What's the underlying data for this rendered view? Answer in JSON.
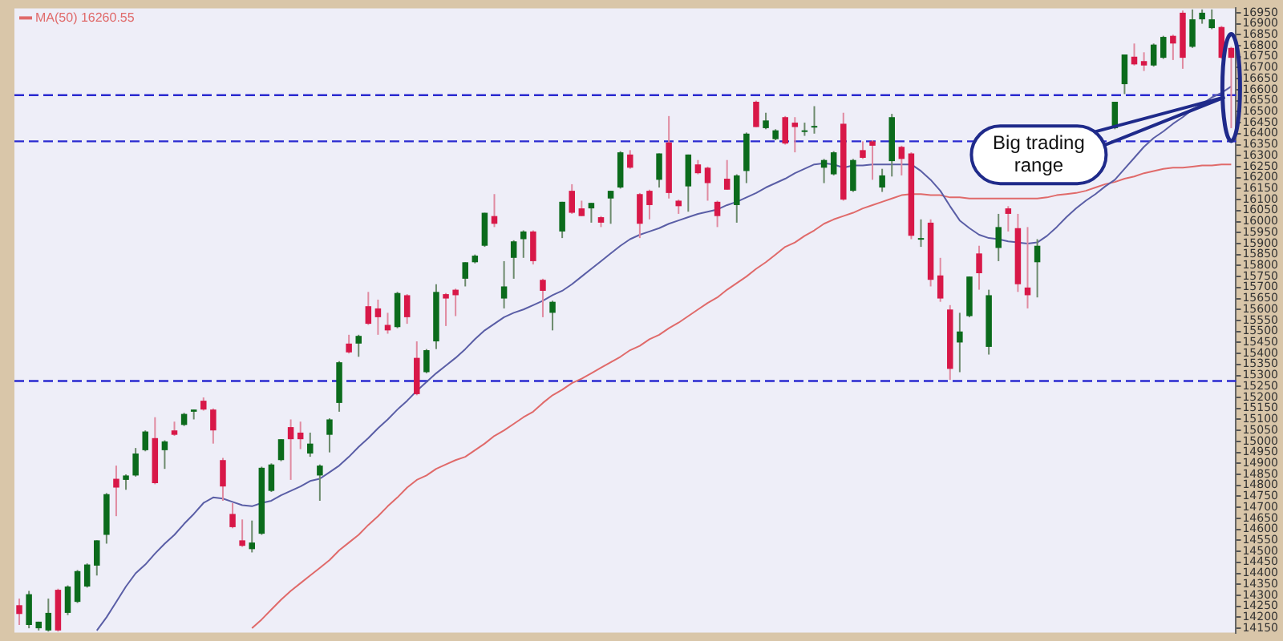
{
  "chart_data": {
    "type": "candlestick",
    "categories": [
      null,
      null,
      null,
      null,
      null,
      null,
      null,
      null,
      null,
      null,
      null,
      null,
      null,
      null,
      null,
      null,
      null,
      null,
      null,
      null,
      null,
      null,
      null,
      null,
      null,
      null,
      null,
      null,
      null,
      null,
      null,
      null,
      null,
      null,
      null,
      null,
      null,
      null,
      null,
      null,
      null,
      null,
      null,
      null,
      null,
      null,
      null,
      null,
      null,
      null,
      null,
      null,
      null,
      null,
      null,
      null,
      null,
      null,
      null,
      null,
      null,
      null,
      null,
      null,
      null,
      null,
      null,
      null,
      null,
      null,
      null,
      null,
      null,
      null,
      null,
      null,
      null,
      null,
      null,
      null,
      null,
      null,
      null,
      null,
      null,
      null,
      null,
      null,
      null,
      null,
      null,
      null,
      null,
      null,
      null,
      null,
      null,
      null,
      null,
      null,
      null,
      null,
      null,
      null,
      null,
      null,
      null,
      null,
      null,
      null,
      null,
      null,
      null,
      null,
      null,
      null,
      null,
      null,
      null,
      null,
      null,
      null,
      null,
      null,
      null,
      null
    ],
    "ohlc": [
      [
        14255,
        14285,
        14165,
        14215
      ],
      [
        14165,
        14320,
        14150,
        14305
      ],
      [
        14150,
        14180,
        14140,
        14180
      ],
      [
        14140,
        14285,
        14135,
        14220
      ],
      [
        14325,
        14330,
        14135,
        14140
      ],
      [
        14220,
        14345,
        14210,
        14340
      ],
      [
        14270,
        14415,
        14265,
        14410
      ],
      [
        14340,
        14445,
        14335,
        14440
      ],
      [
        14435,
        14550,
        14390,
        14550
      ],
      [
        14575,
        14765,
        14535,
        14760
      ],
      [
        14830,
        14890,
        14660,
        14790
      ],
      [
        14825,
        14850,
        14780,
        14845
      ],
      [
        14845,
        14970,
        14840,
        14945
      ],
      [
        14960,
        15050,
        14955,
        15045
      ],
      [
        15015,
        15110,
        14805,
        14810
      ],
      [
        14960,
        15005,
        14875,
        15000
      ],
      [
        15050,
        15090,
        15025,
        15030
      ],
      [
        15075,
        15130,
        15070,
        15125
      ],
      [
        15135,
        15145,
        15100,
        15145
      ],
      [
        15185,
        15200,
        15140,
        15145
      ],
      [
        15145,
        15150,
        14990,
        15050
      ],
      [
        14915,
        14925,
        14730,
        14795
      ],
      [
        14670,
        14720,
        14605,
        14610
      ],
      [
        14550,
        14645,
        14520,
        14525
      ],
      [
        14510,
        14640,
        14495,
        14540
      ],
      [
        14580,
        14885,
        14575,
        14880
      ],
      [
        14775,
        14900,
        14770,
        14895
      ],
      [
        14915,
        15010,
        14910,
        15010
      ],
      [
        15065,
        15100,
        14825,
        15010
      ],
      [
        15040,
        15090,
        14965,
        15010
      ],
      [
        14945,
        15040,
        14930,
        14990
      ],
      [
        14845,
        14895,
        14730,
        14890
      ],
      [
        15030,
        15105,
        14950,
        15100
      ],
      [
        15175,
        15365,
        15135,
        15360
      ],
      [
        15445,
        15485,
        15400,
        15405
      ],
      [
        15445,
        15485,
        15385,
        15480
      ],
      [
        15615,
        15680,
        15530,
        15535
      ],
      [
        15605,
        15645,
        15485,
        15565
      ],
      [
        15530,
        15585,
        15490,
        15505
      ],
      [
        15520,
        15680,
        15515,
        15675
      ],
      [
        15665,
        15670,
        15535,
        15565
      ],
      [
        15380,
        15455,
        15210,
        15215
      ],
      [
        15315,
        15420,
        15310,
        15415
      ],
      [
        15455,
        15715,
        15420,
        15680
      ],
      [
        15670,
        15675,
        15525,
        15650
      ],
      [
        15690,
        15695,
        15570,
        15665
      ],
      [
        15740,
        15815,
        15705,
        15815
      ],
      [
        15815,
        15850,
        15810,
        15845
      ],
      [
        15890,
        16040,
        15885,
        16040
      ],
      [
        16025,
        16125,
        15975,
        15990
      ],
      [
        15650,
        15820,
        15605,
        15705
      ],
      [
        15835,
        15915,
        15740,
        15910
      ],
      [
        15920,
        15960,
        15835,
        15955
      ],
      [
        15955,
        15960,
        15805,
        15820
      ],
      [
        15735,
        15740,
        15565,
        15685
      ],
      [
        15585,
        15640,
        15505,
        15635
      ],
      [
        15955,
        16090,
        15925,
        16090
      ],
      [
        16140,
        16170,
        16035,
        16040
      ],
      [
        16060,
        16095,
        16025,
        16025
      ],
      [
        16060,
        16085,
        15995,
        16085
      ],
      [
        16020,
        16025,
        15975,
        15995
      ],
      [
        16105,
        16140,
        15990,
        16140
      ],
      [
        16155,
        16320,
        16150,
        16315
      ],
      [
        16305,
        16325,
        16240,
        16245
      ],
      [
        16125,
        16130,
        15925,
        15990
      ],
      [
        16140,
        16145,
        16010,
        16075
      ],
      [
        16190,
        16310,
        16155,
        16310
      ],
      [
        16360,
        16480,
        16105,
        16130
      ],
      [
        16095,
        16100,
        16035,
        16070
      ],
      [
        16160,
        16305,
        16045,
        16305
      ],
      [
        16260,
        16280,
        16215,
        16220
      ],
      [
        16245,
        16250,
        16095,
        16175
      ],
      [
        16090,
        16095,
        15975,
        16025
      ],
      [
        16195,
        16280,
        16145,
        16145
      ],
      [
        16075,
        16215,
        15995,
        16210
      ],
      [
        16230,
        16405,
        16175,
        16400
      ],
      [
        16545,
        16550,
        16430,
        16430
      ],
      [
        16425,
        16495,
        16420,
        16460
      ],
      [
        16375,
        16420,
        16370,
        16415
      ],
      [
        16475,
        16480,
        16350,
        16355
      ],
      [
        16450,
        16475,
        16315,
        16430
      ],
      [
        16410,
        16450,
        16390,
        16415
      ],
      [
        16430,
        16525,
        16400,
        16435
      ],
      [
        16245,
        16285,
        16175,
        16280
      ],
      [
        16215,
        16320,
        16210,
        16315
      ],
      [
        16445,
        16495,
        16095,
        16100
      ],
      [
        16140,
        16285,
        16135,
        16280
      ],
      [
        16325,
        16365,
        16285,
        16290
      ],
      [
        16365,
        16370,
        16190,
        16345
      ],
      [
        16155,
        16240,
        16135,
        16210
      ],
      [
        16275,
        16490,
        16205,
        16475
      ],
      [
        16340,
        16345,
        16210,
        16285
      ],
      [
        16310,
        16315,
        15920,
        15935
      ],
      [
        15920,
        16010,
        15885,
        15925
      ],
      [
        15995,
        16010,
        15705,
        15735
      ],
      [
        15755,
        15835,
        15635,
        15650
      ],
      [
        15600,
        15620,
        15280,
        15330
      ],
      [
        15450,
        15585,
        15315,
        15500
      ],
      [
        15570,
        15750,
        15565,
        15750
      ],
      [
        15855,
        15890,
        15690,
        15765
      ],
      [
        15430,
        15690,
        15395,
        15665
      ],
      [
        15880,
        16035,
        15820,
        15975
      ],
      [
        16060,
        16070,
        15955,
        16035
      ],
      [
        15970,
        16035,
        15680,
        15715
      ],
      [
        15700,
        15975,
        15605,
        15665
      ],
      [
        15815,
        15920,
        15655,
        15890
      ],
      null,
      null,
      null,
      null,
      null,
      null,
      null,
      [
        16425,
        16545,
        16420,
        16545
      ],
      [
        16625,
        16760,
        16580,
        16760
      ],
      [
        16750,
        16810,
        16710,
        16715
      ],
      [
        16730,
        16770,
        16685,
        16710
      ],
      [
        16710,
        16810,
        16705,
        16805
      ],
      [
        16745,
        16845,
        16740,
        16840
      ],
      [
        16845,
        16850,
        16735,
        16810
      ],
      [
        16950,
        16960,
        16695,
        16745
      ],
      [
        16795,
        16965,
        16790,
        16920
      ],
      [
        16920,
        16965,
        16900,
        16950
      ],
      [
        16880,
        16965,
        16875,
        16920
      ],
      [
        16885,
        16890,
        16740,
        16745
      ],
      [
        16790,
        16795,
        16425,
        16745
      ]
    ],
    "series": [
      {
        "type": "line",
        "color": "#5a5ea6",
        "values": [
          null,
          null,
          null,
          null,
          null,
          null,
          null,
          null,
          14140,
          14200,
          14270,
          14340,
          14400,
          14440,
          14490,
          14535,
          14575,
          14625,
          14670,
          14720,
          14745,
          14740,
          14725,
          14710,
          14705,
          14720,
          14730,
          14755,
          14775,
          14795,
          14820,
          14830,
          14860,
          14890,
          14930,
          14975,
          15015,
          15060,
          15100,
          15145,
          15185,
          15230,
          15270,
          15310,
          15345,
          15380,
          15420,
          15465,
          15505,
          15535,
          15565,
          15585,
          15600,
          15620,
          15640,
          15665,
          15685,
          15715,
          15750,
          15785,
          15820,
          15855,
          15890,
          15920,
          15940,
          15955,
          15970,
          15990,
          16005,
          16020,
          16035,
          16045,
          16055,
          16075,
          16090,
          16110,
          16130,
          16155,
          16175,
          16195,
          16220,
          16240,
          16260,
          16265,
          16260,
          16245,
          16255,
          16255,
          16260,
          16260,
          16260,
          16260,
          16260,
          16230,
          16190,
          16140,
          16070,
          16005,
          15970,
          15940,
          15925,
          15920,
          15910,
          15905,
          15900,
          15905,
          15935,
          15975,
          16020,
          16060,
          16095,
          16125,
          16160,
          16190,
          16240,
          16290,
          16340,
          16380,
          16410,
          16445,
          16475,
          16510,
          16535,
          16565,
          16585,
          16615
        ]
      },
      {
        "type": "line",
        "name": "MA(50) 16260.55",
        "color": "#e06a6a",
        "values": [
          null,
          null,
          null,
          null,
          null,
          null,
          null,
          null,
          null,
          null,
          null,
          null,
          null,
          null,
          null,
          null,
          null,
          null,
          null,
          null,
          null,
          null,
          null,
          null,
          14150,
          14190,
          14235,
          14280,
          14320,
          14355,
          14390,
          14425,
          14460,
          14505,
          14540,
          14575,
          14620,
          14660,
          14705,
          14745,
          14790,
          14825,
          14845,
          14875,
          14895,
          14915,
          14930,
          14960,
          14990,
          15025,
          15050,
          15080,
          15110,
          15135,
          15175,
          15210,
          15235,
          15265,
          15285,
          15310,
          15335,
          15360,
          15385,
          15415,
          15435,
          15465,
          15485,
          15515,
          15540,
          15570,
          15600,
          15630,
          15655,
          15690,
          15720,
          15750,
          15785,
          15815,
          15850,
          15885,
          15905,
          15935,
          15960,
          15990,
          16010,
          16025,
          16040,
          16060,
          16075,
          16090,
          16105,
          16120,
          16125,
          16125,
          16120,
          16120,
          16110,
          16110,
          16105,
          16105,
          16105,
          16105,
          16105,
          16105,
          16105,
          16105,
          16110,
          16120,
          16125,
          16130,
          16140,
          16155,
          16170,
          16180,
          16195,
          16205,
          16220,
          16230,
          16240,
          16245,
          16245,
          16250,
          16255,
          16255,
          16260,
          16260
        ]
      }
    ],
    "ylim": [
      14130,
      16970
    ],
    "yticks": [
      14150,
      14200,
      14250,
      14300,
      14350,
      14400,
      14450,
      14500,
      14550,
      14600,
      14650,
      14700,
      14750,
      14800,
      14850,
      14900,
      14950,
      15000,
      15050,
      15100,
      15150,
      15200,
      15250,
      15300,
      15350,
      15400,
      15450,
      15500,
      15550,
      15600,
      15650,
      15700,
      15750,
      15800,
      15850,
      15900,
      15950,
      16000,
      16050,
      16100,
      16150,
      16200,
      16250,
      16300,
      16350,
      16400,
      16450,
      16500,
      16550,
      16600,
      16650,
      16700,
      16750,
      16800,
      16850,
      16900,
      16950
    ],
    "ref_lines": [
      {
        "axis": "y",
        "value": 15275,
        "color": "#2a2ad0",
        "line_style": "dashed"
      },
      {
        "axis": "y",
        "value": 16365,
        "color": "#2a2ad0",
        "line_style": "dashed"
      },
      {
        "axis": "y",
        "value": 16575,
        "color": "#2a2ad0",
        "line_style": "dashed"
      }
    ],
    "annotations": [
      "Big trading range"
    ],
    "tick_labels": "y",
    "legend": "top left"
  }
}
